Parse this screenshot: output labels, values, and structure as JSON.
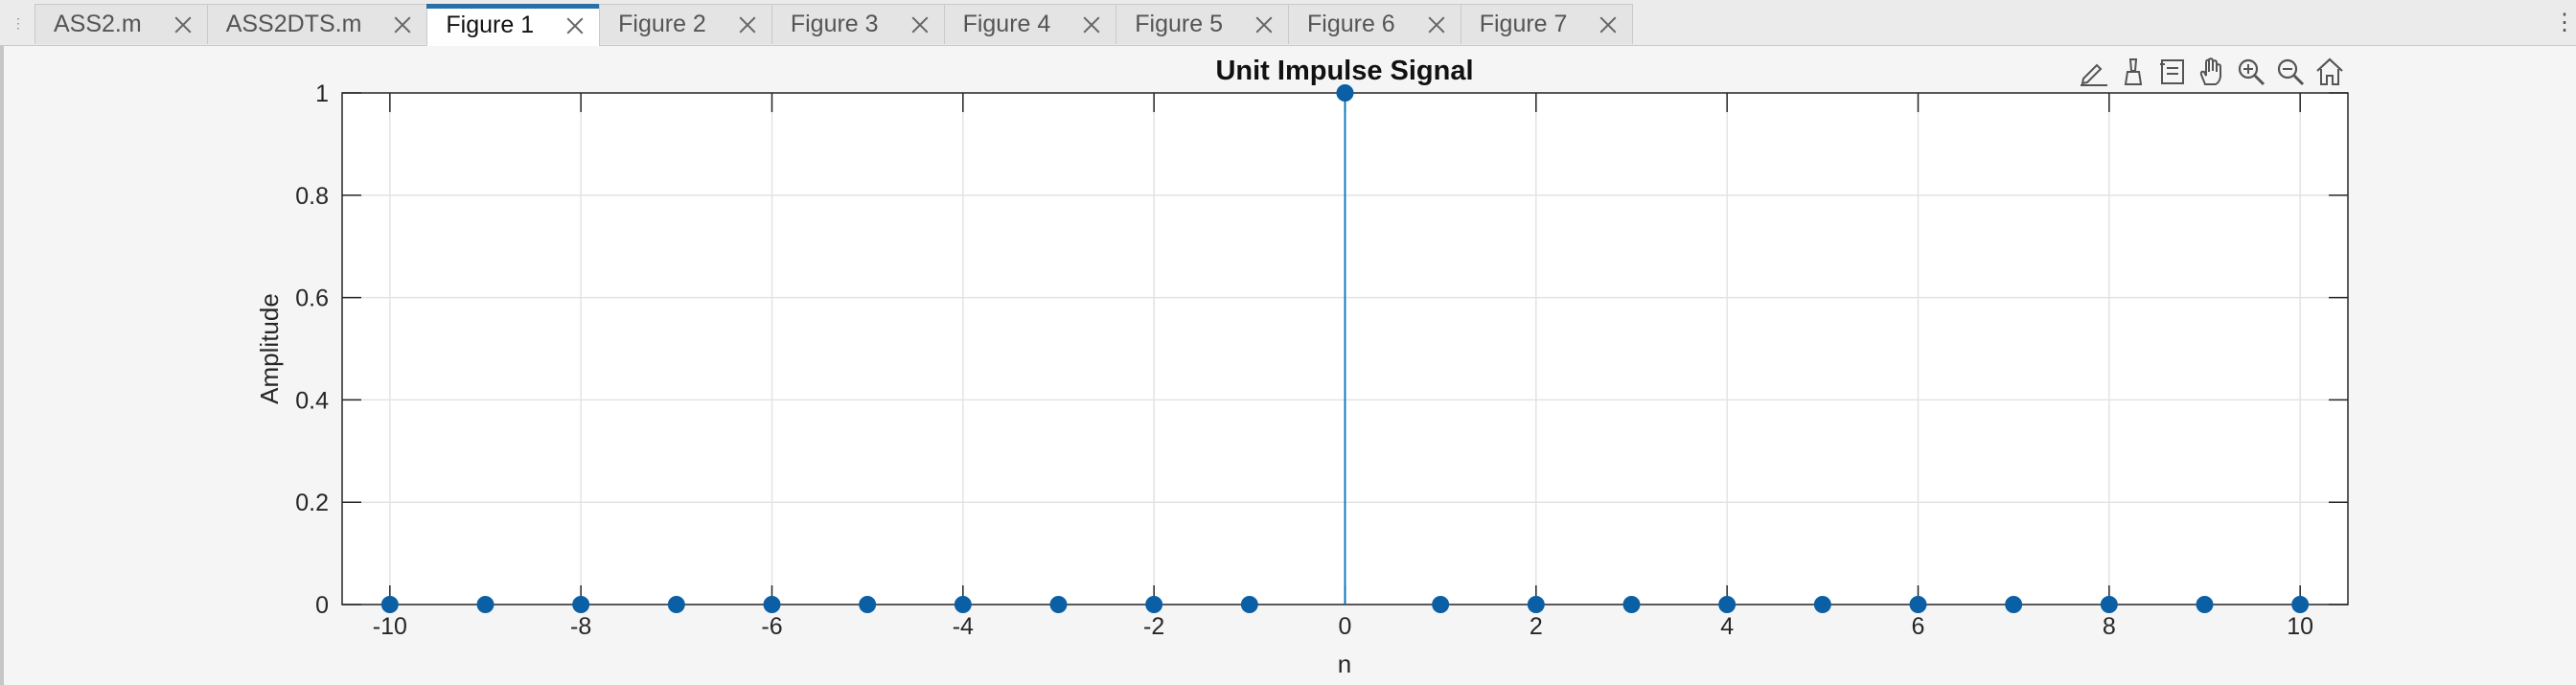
{
  "tabs": [
    {
      "label": "ASS2.m",
      "active": false
    },
    {
      "label": "ASS2DTS.m",
      "active": false
    },
    {
      "label": "Figure 1",
      "active": true
    },
    {
      "label": "Figure 2",
      "active": false
    },
    {
      "label": "Figure 3",
      "active": false
    },
    {
      "label": "Figure 4",
      "active": false
    },
    {
      "label": "Figure 5",
      "active": false
    },
    {
      "label": "Figure 6",
      "active": false
    },
    {
      "label": "Figure 7",
      "active": false
    }
  ],
  "toolbar": [
    {
      "name": "edit-plot-icon"
    },
    {
      "name": "brush-icon"
    },
    {
      "name": "data-tips-icon"
    },
    {
      "name": "pan-hand-icon"
    },
    {
      "name": "zoom-in-icon"
    },
    {
      "name": "zoom-out-icon"
    },
    {
      "name": "home-icon"
    }
  ],
  "colors": {
    "stem": "#0072BD",
    "marker": "#0b5fa5"
  },
  "chart_data": {
    "type": "stem",
    "title": "Unit Impulse Signal",
    "xlabel": "n",
    "ylabel": "Amplitude",
    "xlim": [
      -10.5,
      10.5
    ],
    "ylim": [
      0,
      1
    ],
    "grid": true,
    "x": [
      -10,
      -9,
      -8,
      -7,
      -6,
      -5,
      -4,
      -3,
      -2,
      -1,
      0,
      1,
      2,
      3,
      4,
      5,
      6,
      7,
      8,
      9,
      10
    ],
    "y": [
      0,
      0,
      0,
      0,
      0,
      0,
      0,
      0,
      0,
      0,
      1,
      0,
      0,
      0,
      0,
      0,
      0,
      0,
      0,
      0,
      0
    ],
    "xticks": [
      "-10",
      "-8",
      "-6",
      "-4",
      "-2",
      "0",
      "2",
      "4",
      "6",
      "8",
      "10"
    ],
    "yticks": [
      "0",
      "0.2",
      "0.4",
      "0.6",
      "0.8",
      "1"
    ]
  }
}
